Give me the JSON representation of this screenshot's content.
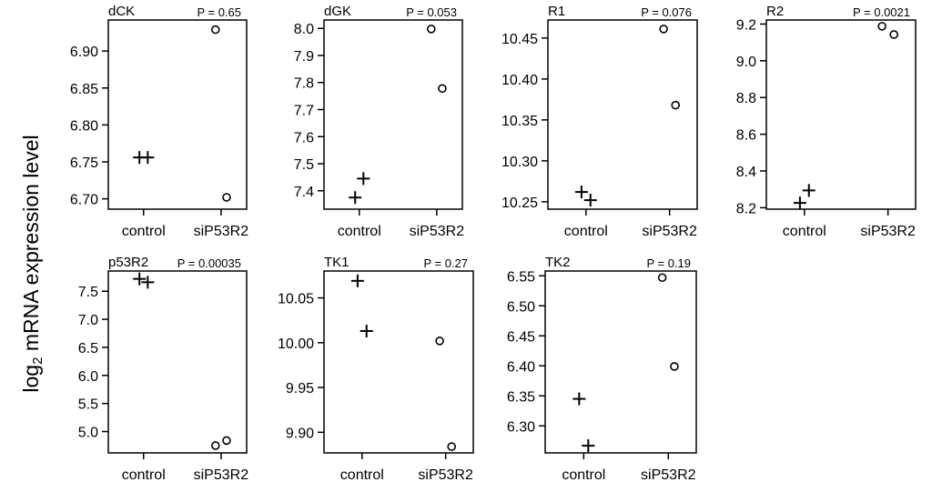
{
  "figure": {
    "ylabel_main": "log",
    "ylabel_sub": "2",
    "ylabel_rest": " mRNA expression level"
  },
  "chart_data": [
    {
      "type": "scatter",
      "title": "dCK",
      "pvalue": "P = 0.65",
      "categories": [
        "control",
        "siP53R2"
      ],
      "ylim": [
        6.686,
        6.942
      ],
      "yticks": [
        "6.70",
        "6.75",
        "6.80",
        "6.85",
        "6.90"
      ],
      "series": [
        {
          "marker": "plus",
          "points": [
            {
              "x": "control",
              "y": 6.756
            },
            {
              "x": "control",
              "y": 6.756
            }
          ]
        },
        {
          "marker": "circle",
          "points": [
            {
              "x": "siP53R2",
              "y": 6.929
            },
            {
              "x": "siP53R2",
              "y": 6.702
            }
          ]
        }
      ]
    },
    {
      "type": "scatter",
      "title": "dGK",
      "pvalue": "P = 0.053",
      "categories": [
        "control",
        "siP53R2"
      ],
      "ylim": [
        7.332,
        8.031
      ],
      "yticks": [
        "7.4",
        "7.5",
        "7.6",
        "7.7",
        "7.8",
        "7.9",
        "8.0"
      ],
      "series": [
        {
          "marker": "plus",
          "points": [
            {
              "x": "control",
              "y": 7.375
            },
            {
              "x": "control",
              "y": 7.445
            }
          ]
        },
        {
          "marker": "circle",
          "points": [
            {
              "x": "siP53R2",
              "y": 7.998
            },
            {
              "x": "siP53R2",
              "y": 7.778
            }
          ]
        }
      ]
    },
    {
      "type": "scatter",
      "title": "R1",
      "pvalue": "P = 0.076",
      "categories": [
        "control",
        "siP53R2"
      ],
      "ylim": [
        10.241,
        10.472
      ],
      "yticks": [
        "10.25",
        "10.30",
        "10.35",
        "10.40",
        "10.45"
      ],
      "series": [
        {
          "marker": "plus",
          "points": [
            {
              "x": "control",
              "y": 10.262
            },
            {
              "x": "control",
              "y": 10.252
            }
          ]
        },
        {
          "marker": "circle",
          "points": [
            {
              "x": "siP53R2",
              "y": 10.461
            },
            {
              "x": "siP53R2",
              "y": 10.368
            }
          ]
        }
      ]
    },
    {
      "type": "scatter",
      "title": "R2",
      "pvalue": "P = 0.0021",
      "categories": [
        "control",
        "siP53R2"
      ],
      "ylim": [
        8.192,
        9.222
      ],
      "yticks": [
        "8.2",
        "8.4",
        "8.6",
        "8.8",
        "9.0",
        "9.2"
      ],
      "series": [
        {
          "marker": "plus",
          "points": [
            {
              "x": "control",
              "y": 8.226
            },
            {
              "x": "control",
              "y": 8.294
            }
          ]
        },
        {
          "marker": "circle",
          "points": [
            {
              "x": "siP53R2",
              "y": 9.188
            },
            {
              "x": "siP53R2",
              "y": 9.143
            }
          ]
        }
      ]
    },
    {
      "type": "scatter",
      "title": "p53R2",
      "pvalue": "P = 0.00035",
      "categories": [
        "control",
        "siP53R2"
      ],
      "ylim": [
        4.62,
        7.86
      ],
      "yticks": [
        "5.0",
        "5.5",
        "6.0",
        "6.5",
        "7.0",
        "7.5"
      ],
      "series": [
        {
          "marker": "plus",
          "points": [
            {
              "x": "control",
              "y": 7.72
            },
            {
              "x": "control",
              "y": 7.66
            }
          ]
        },
        {
          "marker": "circle",
          "points": [
            {
              "x": "siP53R2",
              "y": 4.75
            },
            {
              "x": "siP53R2",
              "y": 4.84
            }
          ]
        }
      ]
    },
    {
      "type": "scatter",
      "title": "TK1",
      "pvalue": "P = 0.27",
      "categories": [
        "control",
        "siP53R2"
      ],
      "ylim": [
        9.877,
        10.08
      ],
      "yticks": [
        "9.90",
        "9.95",
        "10.00",
        "10.05"
      ],
      "series": [
        {
          "marker": "plus",
          "points": [
            {
              "x": "control",
              "y": 10.069
            },
            {
              "x": "control",
              "y": 10.013
            }
          ]
        },
        {
          "marker": "circle",
          "points": [
            {
              "x": "siP53R2",
              "y": 10.002
            },
            {
              "x": "siP53R2",
              "y": 9.884
            }
          ]
        }
      ]
    },
    {
      "type": "scatter",
      "title": "TK2",
      "pvalue": "P = 0.19",
      "categories": [
        "control",
        "siP53R2"
      ],
      "ylim": [
        6.255,
        6.558
      ],
      "yticks": [
        "6.30",
        "6.35",
        "6.40",
        "6.45",
        "6.50",
        "6.55"
      ],
      "series": [
        {
          "marker": "plus",
          "points": [
            {
              "x": "control",
              "y": 6.345
            },
            {
              "x": "control",
              "y": 6.267
            }
          ]
        },
        {
          "marker": "circle",
          "points": [
            {
              "x": "siP53R2",
              "y": 6.547
            },
            {
              "x": "siP53R2",
              "y": 6.399
            }
          ]
        }
      ]
    }
  ]
}
